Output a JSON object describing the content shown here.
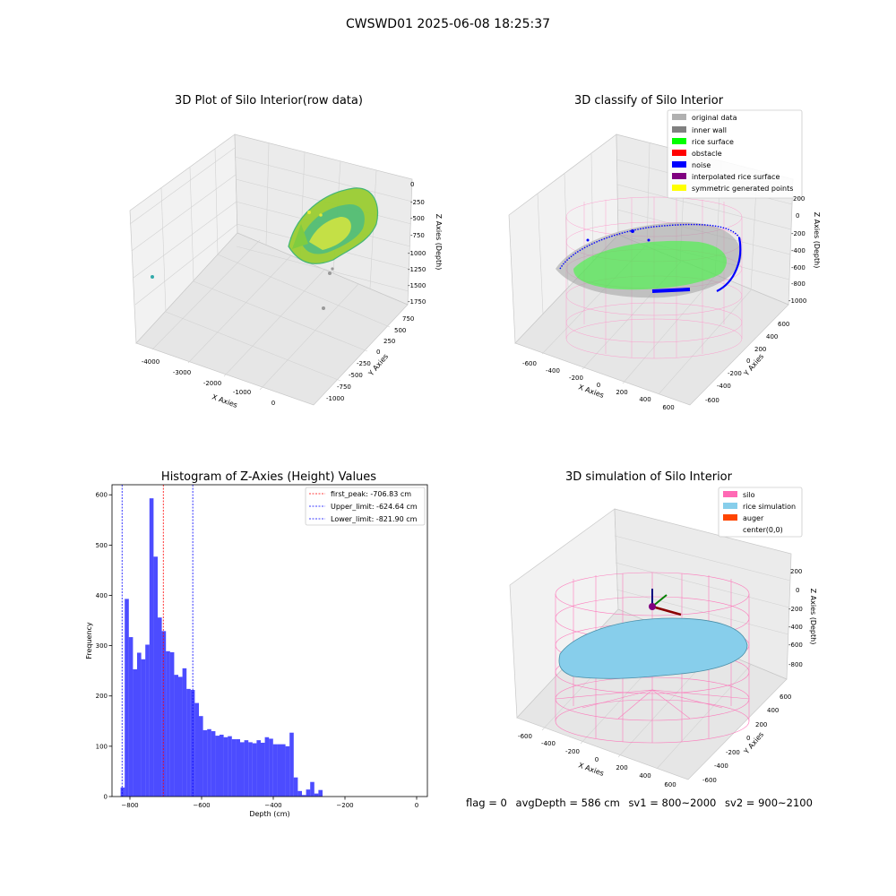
{
  "figure": {
    "suptitle": "CWSWD01 2025-06-08 18:25:37"
  },
  "panel_raw": {
    "title": "3D Plot of Silo Interior(row data)",
    "xlabel": "X Axies",
    "ylabel": "Y Axies",
    "zlabel": "Z Axies (Depth)",
    "x_ticks": [
      "-4000",
      "-3000",
      "-2000",
      "-1000",
      "0"
    ],
    "y_ticks": [
      "750",
      "500",
      "250",
      "0",
      "-250",
      "-500",
      "-750",
      "-1000"
    ],
    "z_ticks": [
      "0",
      "-250",
      "-500",
      "-750",
      "-1000",
      "-1250",
      "-1500",
      "-1750"
    ]
  },
  "panel_classify": {
    "title": "3D classify of Silo Interior",
    "xlabel": "X Axies",
    "ylabel": "Y Axies",
    "zlabel": "Z Axies (Depth)",
    "x_ticks": [
      "-600",
      "-400",
      "-200",
      "0",
      "200",
      "400",
      "600"
    ],
    "y_ticks": [
      "600",
      "400",
      "200",
      "0",
      "-200",
      "-400",
      "-600"
    ],
    "z_ticks": [
      "200",
      "0",
      "-200",
      "-400",
      "-600",
      "-800",
      "-1000"
    ],
    "legend": [
      {
        "label": "original data",
        "color": "#b0b0b0"
      },
      {
        "label": "inner wall",
        "color": "#808080"
      },
      {
        "label": "rice surface",
        "color": "#00ff00"
      },
      {
        "label": "obstacle",
        "color": "#ff0000"
      },
      {
        "label": "noise",
        "color": "#0000ff"
      },
      {
        "label": "interpolated rice surface",
        "color": "#800080"
      },
      {
        "label": "symmetric generated points",
        "color": "#ffff00"
      }
    ]
  },
  "panel_sim": {
    "title": "3D simulation of Silo Interior",
    "xlabel": "X Axies",
    "ylabel": "Y Axies",
    "zlabel": "Z Axies (Depth)",
    "x_ticks": [
      "-600",
      "-400",
      "-200",
      "0",
      "200",
      "400",
      "600"
    ],
    "y_ticks": [
      "600",
      "400",
      "200",
      "0",
      "-200",
      "-400",
      "-600"
    ],
    "z_ticks": [
      "200",
      "0",
      "-200",
      "-400",
      "-600",
      "-800"
    ],
    "legend": [
      {
        "label": "silo",
        "color": "#ff69b4"
      },
      {
        "label": "rice simulation",
        "color": "#87ceeb"
      },
      {
        "label": "auger",
        "color": "#ff4500"
      },
      {
        "label": "center(0,0)",
        "color": ""
      }
    ]
  },
  "footer": {
    "flag": "flag = 0",
    "avg_depth": "avgDepth = 586 cm",
    "sv1": "sv1 = 800~2000",
    "sv2": "sv2 = 900~2100"
  },
  "chart_data": [
    {
      "type": "bar",
      "title": "Histogram of Z-Axies (Height) Values",
      "xlabel": "Depth (cm)",
      "ylabel": "Frequency",
      "bar_color": "#0000ff",
      "bin_start": -826,
      "bin_width": 11.5,
      "values": [
        18,
        393,
        317,
        253,
        286,
        273,
        302,
        593,
        477,
        356,
        329,
        289,
        287,
        242,
        238,
        255,
        214,
        212,
        186,
        160,
        132,
        134,
        130,
        121,
        123,
        118,
        120,
        114,
        114,
        108,
        112,
        108,
        106,
        112,
        107,
        118,
        115,
        104,
        104,
        104,
        100,
        127,
        38,
        11,
        3,
        14,
        29,
        6,
        13
      ],
      "xlim": [
        -850,
        30
      ],
      "ylim": [
        0,
        620
      ],
      "x_ticks": [
        -800,
        -600,
        -400,
        -200,
        0
      ],
      "y_ticks": [
        0,
        100,
        200,
        300,
        400,
        500,
        600
      ],
      "legend_position": "upper right",
      "reference_lines": [
        {
          "label": "first_peak: -706.83 cm",
          "x": -706.83,
          "color": "#ff0000"
        },
        {
          "label": "Upper_limit: -624.64 cm",
          "x": -624.64,
          "color": "#0000ff"
        },
        {
          "label": "Lower_limit: -821.90 cm",
          "x": -821.9,
          "color": "#0000ff"
        }
      ]
    }
  ]
}
